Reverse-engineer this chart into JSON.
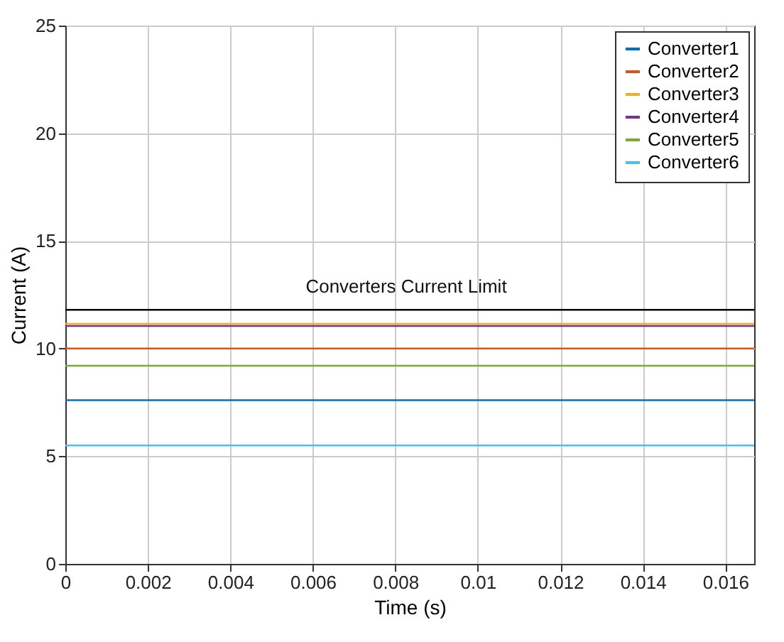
{
  "chart_data": {
    "type": "line",
    "xlabel": "Time (s)",
    "ylabel": "Current (A)",
    "x": [
      0,
      0.0167
    ],
    "xlim": [
      0,
      0.0167
    ],
    "xticks": [
      0,
      0.002,
      0.004,
      0.006,
      0.008,
      0.01,
      0.012,
      0.014,
      0.016
    ],
    "ylim": [
      0,
      25
    ],
    "yticks": [
      0,
      5,
      10,
      15,
      20,
      25
    ],
    "series": [
      {
        "name": "Converter1",
        "color": "#0072bd",
        "values": [
          7.6,
          7.6
        ]
      },
      {
        "name": "Converter2",
        "color": "#d95319",
        "values": [
          10.0,
          10.0
        ]
      },
      {
        "name": "Converter3",
        "color": "#edb120",
        "values": [
          11.15,
          11.15
        ]
      },
      {
        "name": "Converter4",
        "color": "#7e2f8e",
        "values": [
          11.05,
          11.05
        ]
      },
      {
        "name": "Converter5",
        "color": "#77ac30",
        "values": [
          9.2,
          9.2
        ]
      },
      {
        "name": "Converter6",
        "color": "#4dbeee",
        "values": [
          5.5,
          5.5
        ]
      }
    ],
    "ref_lines": [
      {
        "axis": "y",
        "value": 11.8,
        "label": "Converters Current Limit",
        "color": "#000000"
      }
    ],
    "grid": true,
    "legend": "top right",
    "line_style": "solid",
    "marker": "none"
  }
}
